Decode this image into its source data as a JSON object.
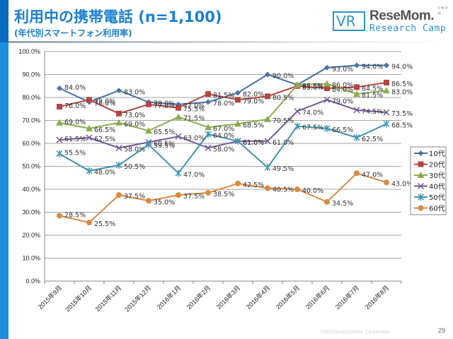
{
  "header": {
    "title": "利用中の携帯電話 (n=1,100)",
    "subtitle": "(年代別スマートフォン利用率)"
  },
  "logo": {
    "mark": "VR",
    "line1": "ReseMom.",
    "line2": "Research Camp",
    "ruby": "リセマム"
  },
  "footer": {
    "copyright": "©2012JustSystems Corporation",
    "page_number": "29"
  },
  "colors": {
    "accent": "#1a8fe0",
    "title": "#1a7fd0"
  },
  "chart_data": {
    "type": "line",
    "title": "",
    "xlabel": "",
    "ylabel": "",
    "ylim": [
      0,
      100
    ],
    "y_ticks": [
      0,
      10,
      20,
      30,
      40,
      50,
      60,
      70,
      80,
      90,
      100
    ],
    "y_tick_labels": [
      "0.0%",
      "10.0%",
      "20.0%",
      "30.0%",
      "40.0%",
      "50.0%",
      "60.0%",
      "70.0%",
      "80.0%",
      "90.0%",
      "100.0%"
    ],
    "grid": true,
    "legend_position": "right",
    "categories": [
      "2015年9月",
      "2015年10月",
      "2015年11月",
      "2015年12月",
      "2016年1月",
      "2016年2月",
      "2016年3月",
      "2016年4月",
      "2016年5月",
      "2016年6月",
      "2016年7月",
      "2016年8月"
    ],
    "series": [
      {
        "name": "10代",
        "color": "#4a72a8",
        "marker": "diamond",
        "values": [
          84.0,
          78.0,
          83.0,
          78.0,
          77.0,
          78.0,
          82.0,
          90.0,
          85.5,
          93.0,
          94.0,
          94.0
        ]
      },
      {
        "name": "20代",
        "color": "#b04543",
        "marker": "square",
        "values": [
          76.0,
          79.0,
          73.0,
          77.0,
          75.5,
          81.5,
          79.0,
          80.5,
          85.0,
          84.0,
          84.5,
          86.5
        ]
      },
      {
        "name": "30代",
        "color": "#8eab4f",
        "marker": "triangle",
        "values": [
          69.0,
          66.5,
          69.0,
          65.5,
          71.5,
          67.0,
          68.5,
          70.5,
          85.5,
          86.0,
          81.5,
          83.0
        ]
      },
      {
        "name": "40代",
        "color": "#72599a",
        "marker": "x",
        "values": [
          61.5,
          62.5,
          58.0,
          60.5,
          63.0,
          58.0,
          61.0,
          61.0,
          74.0,
          79.0,
          74.5,
          73.5
        ]
      },
      {
        "name": "50代",
        "color": "#3f95ad",
        "marker": "star",
        "values": [
          55.5,
          48.0,
          50.5,
          59.5,
          47.0,
          64.0,
          61.0,
          49.5,
          67.5,
          66.5,
          62.5,
          68.5
        ]
      },
      {
        "name": "60代",
        "color": "#d98b45",
        "marker": "circle",
        "values": [
          28.5,
          25.5,
          37.5,
          35.0,
          37.5,
          38.5,
          42.5,
          40.5,
          40.0,
          34.5,
          47.0,
          43.0
        ]
      }
    ],
    "label_suffix": "%"
  }
}
